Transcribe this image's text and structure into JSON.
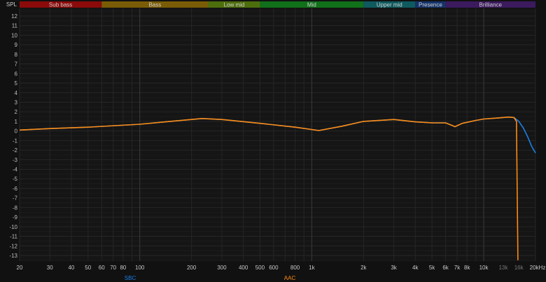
{
  "chart_data": {
    "type": "line",
    "ylabel": "SPL",
    "xscale": "log",
    "xlim": [
      20,
      20000
    ],
    "ylim": [
      -13.5,
      12.5
    ],
    "grid": true,
    "yticks": [
      12,
      11,
      10,
      9,
      8,
      7,
      6,
      5,
      4,
      3,
      2,
      1,
      0,
      -1,
      -2,
      -3,
      -4,
      -5,
      -6,
      -7,
      -8,
      -9,
      -10,
      -11,
      -12,
      -13
    ],
    "xticks": [
      {
        "v": 20,
        "l": "20"
      },
      {
        "v": 30,
        "l": "30"
      },
      {
        "v": 40,
        "l": "40"
      },
      {
        "v": 50,
        "l": "50"
      },
      {
        "v": 60,
        "l": "60"
      },
      {
        "v": 70,
        "l": "70"
      },
      {
        "v": 80,
        "l": "80"
      },
      {
        "v": 100,
        "l": "100"
      },
      {
        "v": 200,
        "l": "200"
      },
      {
        "v": 300,
        "l": "300"
      },
      {
        "v": 400,
        "l": "400"
      },
      {
        "v": 500,
        "l": "500"
      },
      {
        "v": 600,
        "l": "600"
      },
      {
        "v": 800,
        "l": "800"
      },
      {
        "v": 1000,
        "l": "1k"
      },
      {
        "v": 2000,
        "l": "2k"
      },
      {
        "v": 3000,
        "l": "3k"
      },
      {
        "v": 4000,
        "l": "4k"
      },
      {
        "v": 5000,
        "l": "5k"
      },
      {
        "v": 6000,
        "l": "6k"
      },
      {
        "v": 7000,
        "l": "7k"
      },
      {
        "v": 8000,
        "l": "8k"
      },
      {
        "v": 10000,
        "l": "10k"
      },
      {
        "v": 13000,
        "l": "13k"
      },
      {
        "v": 16000,
        "l": "16k"
      },
      {
        "v": 20000,
        "l": "20kHz"
      }
    ],
    "bands": [
      {
        "name": "Sub bass",
        "from": 20,
        "to": 60,
        "color": "#8b0a0a"
      },
      {
        "name": "Bass",
        "from": 60,
        "to": 250,
        "color": "#7a5c06"
      },
      {
        "name": "Low mid",
        "from": 250,
        "to": 500,
        "color": "#4d6e0c"
      },
      {
        "name": "Mid",
        "from": 500,
        "to": 2000,
        "color": "#11701a"
      },
      {
        "name": "Upper mid",
        "from": 2000,
        "to": 4000,
        "color": "#0f5a5e"
      },
      {
        "name": "Presence",
        "from": 4000,
        "to": 6000,
        "color": "#15336a"
      },
      {
        "name": "Brilliance",
        "from": 6000,
        "to": 20000,
        "color": "#3b1a5e"
      }
    ],
    "series": [
      {
        "name": "SBC",
        "color": "#1a7fe6",
        "points": [
          [
            20,
            0.1
          ],
          [
            30,
            0.25
          ],
          [
            50,
            0.4
          ],
          [
            100,
            0.7
          ],
          [
            150,
            1.0
          ],
          [
            230,
            1.3
          ],
          [
            300,
            1.2
          ],
          [
            500,
            0.8
          ],
          [
            800,
            0.4
          ],
          [
            1100,
            0.05
          ],
          [
            1500,
            0.5
          ],
          [
            2000,
            1.0
          ],
          [
            3000,
            1.2
          ],
          [
            4000,
            0.95
          ],
          [
            5000,
            0.85
          ],
          [
            6000,
            0.85
          ],
          [
            6500,
            0.6
          ],
          [
            6800,
            0.45
          ],
          [
            7500,
            0.8
          ],
          [
            9000,
            1.1
          ],
          [
            10000,
            1.25
          ],
          [
            12000,
            1.35
          ],
          [
            14000,
            1.45
          ],
          [
            15000,
            1.4
          ],
          [
            16000,
            1.0
          ],
          [
            17000,
            0.3
          ],
          [
            18000,
            -0.6
          ],
          [
            19000,
            -1.6
          ],
          [
            20000,
            -2.3
          ]
        ]
      },
      {
        "name": "AAC",
        "color": "#ff8a10",
        "points": [
          [
            20,
            0.1
          ],
          [
            30,
            0.25
          ],
          [
            50,
            0.4
          ],
          [
            100,
            0.7
          ],
          [
            150,
            1.0
          ],
          [
            230,
            1.3
          ],
          [
            300,
            1.2
          ],
          [
            500,
            0.8
          ],
          [
            800,
            0.4
          ],
          [
            1100,
            0.05
          ],
          [
            1500,
            0.5
          ],
          [
            2000,
            1.0
          ],
          [
            3000,
            1.2
          ],
          [
            4000,
            0.95
          ],
          [
            5000,
            0.85
          ],
          [
            6000,
            0.85
          ],
          [
            6500,
            0.6
          ],
          [
            6800,
            0.45
          ],
          [
            7500,
            0.8
          ],
          [
            9000,
            1.1
          ],
          [
            10000,
            1.25
          ],
          [
            12000,
            1.35
          ],
          [
            14000,
            1.45
          ],
          [
            15000,
            1.4
          ],
          [
            15500,
            1.0
          ],
          [
            15800,
            -13.5
          ]
        ]
      }
    ]
  }
}
